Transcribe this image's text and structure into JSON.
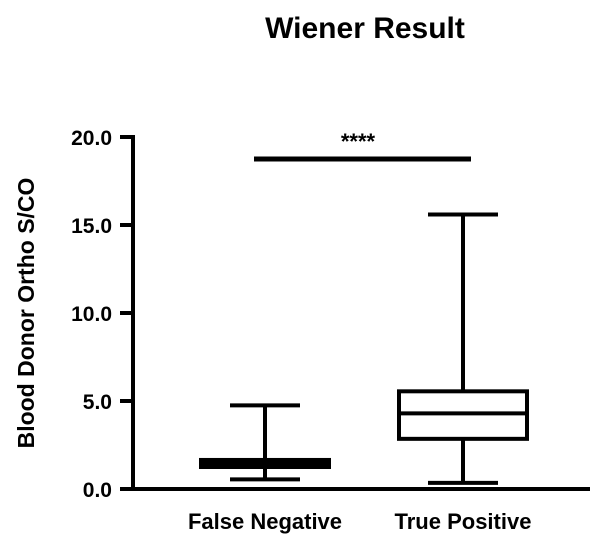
{
  "chart_data": {
    "type": "box",
    "title": "Wiener Result",
    "ylabel": "Blood Donor Ortho S/CO",
    "xlabel": "",
    "ylim": [
      0,
      20
    ],
    "y_ticks": [
      "0.0",
      "5.0",
      "10.0",
      "15.0",
      "20.0"
    ],
    "y_tick_values": [
      0,
      5,
      10,
      15,
      20
    ],
    "categories": [
      "False Negative",
      "True Positive"
    ],
    "boxes": [
      {
        "category": "False Negative",
        "min": 0.55,
        "q1": 1.25,
        "median": 1.45,
        "q3": 1.65,
        "max": 4.75
      },
      {
        "category": "True Positive",
        "min": 0.35,
        "q1": 2.85,
        "median": 4.3,
        "q3": 5.55,
        "max": 15.6
      }
    ],
    "significance": {
      "label": "****",
      "y": 18.75,
      "from": "False Negative",
      "to": "True Positive"
    },
    "grid": false,
    "colors": {
      "stroke": "#000000",
      "box_fill": "#ffffff",
      "background": "#ffffff"
    }
  }
}
